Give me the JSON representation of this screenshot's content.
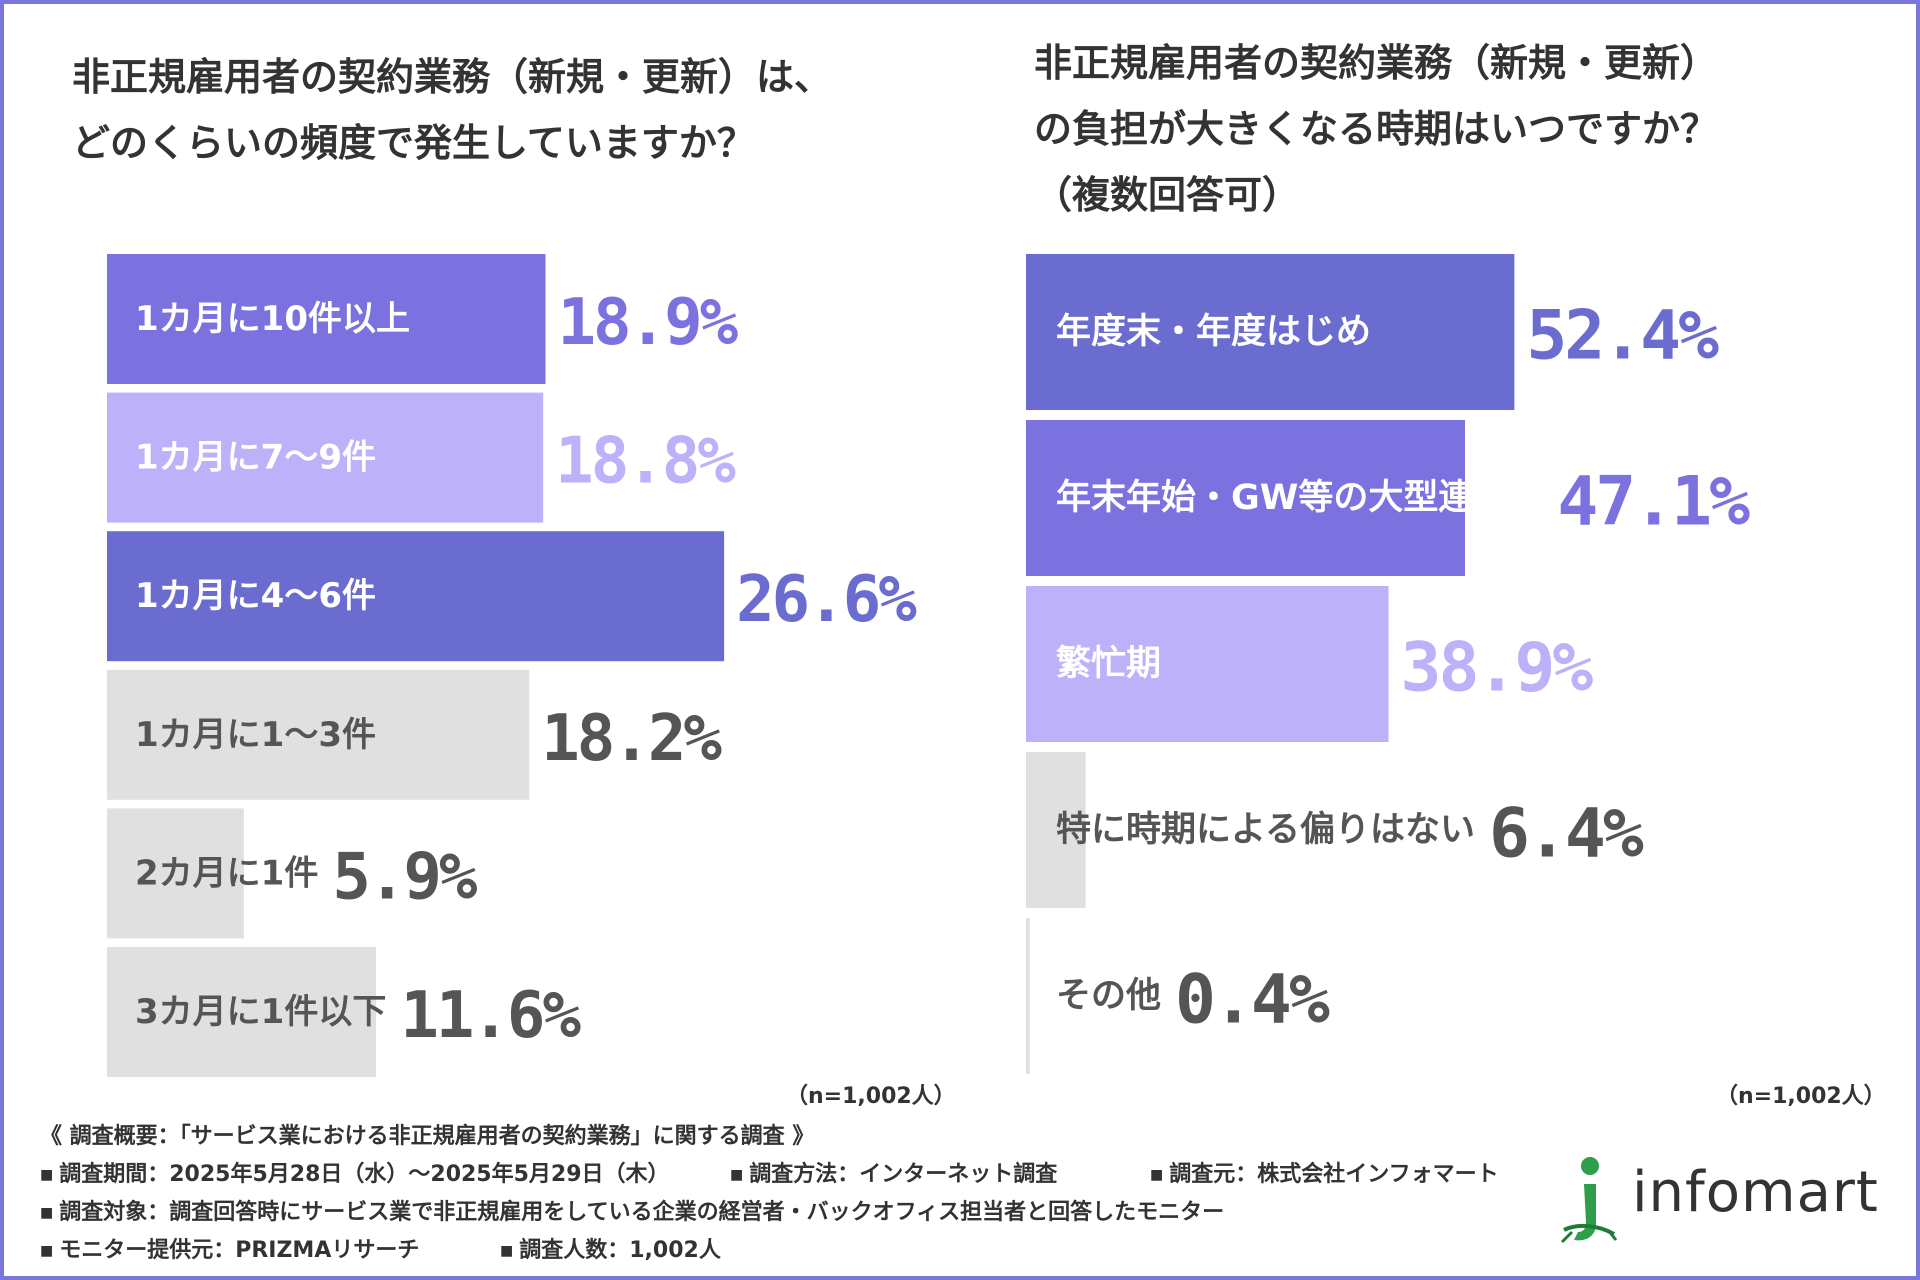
{
  "colors": {
    "frame": "#7b76d9",
    "purple_main": "#7b72df",
    "purple_light": "#bdb1fa",
    "indigo": "#6a6cd0",
    "gray_bar": "#e0e0e0",
    "gray_text": "#555555",
    "logo_green": "#2f9e4a"
  },
  "chart_data": [
    {
      "type": "bar",
      "orientation": "horizontal",
      "title": "非正規雇用者の契約業務（新規・更新）は、どのくらいの頻度で発生していますか？",
      "title_lines": [
        "非正規雇用者の契約業務（新規・更新）は、",
        "どのくらいの頻度で発生していますか？"
      ],
      "categories": [
        "1カ月に10件以上",
        "1カ月に7〜9件",
        "1カ月に4〜6件",
        "1カ月に1〜3件",
        "2カ月に1件",
        "3カ月に1件以下"
      ],
      "values": [
        18.9,
        18.8,
        26.6,
        18.2,
        5.9,
        11.6
      ],
      "labels": [
        "18.9%",
        "18.8%",
        "26.6%",
        "18.2%",
        "5.9%",
        "11.6%"
      ],
      "bar_colors": [
        "#7b72df",
        "#bdb1fa",
        "#6a6cd0",
        "#e0e0e0",
        "#e0e0e0",
        "#e0e0e0"
      ],
      "label_colors": [
        "#ffffff",
        "#ffffff",
        "#ffffff",
        "#555555",
        "#555555",
        "#555555"
      ],
      "value_colors": [
        "#7b72df",
        "#bdb1fa",
        "#6a6cd0",
        "#555555",
        "#555555",
        "#555555"
      ],
      "xlim": [
        0,
        30
      ],
      "note": "（n=1,002人）"
    },
    {
      "type": "bar",
      "orientation": "horizontal",
      "title": "非正規雇用者の契約業務（新規・更新）の負担が大きくなる時期はいつですか？（複数回答可）",
      "title_lines": [
        "非正規雇用者の契約業務（新規・更新）",
        "の負担が大きくなる時期はいつですか？",
        "（複数回答可）"
      ],
      "categories": [
        "年度末・年度はじめ",
        "年末年始・GW等の大型連休前",
        "繁忙期",
        "特に時期による偏りはない",
        "その他"
      ],
      "values": [
        52.4,
        47.1,
        38.9,
        6.4,
        0.4
      ],
      "labels": [
        "52.4%",
        "47.1%",
        "38.9%",
        "6.4%",
        "0.4%"
      ],
      "bar_colors": [
        "#6a6cd0",
        "#7b72df",
        "#bdb1fa",
        "#e0e0e0",
        "#e0e0e0"
      ],
      "label_colors": [
        "#ffffff",
        "#ffffff",
        "#ffffff",
        "#555555",
        "#555555"
      ],
      "value_colors": [
        "#6a6cd0",
        "#7b72df",
        "#bdb1fa",
        "#555555",
        "#555555"
      ],
      "xlim": [
        0,
        60
      ],
      "note": "（n=1,002人）"
    }
  ],
  "survey": {
    "heading": "《 調査概要：「サービス業における非正規雇用者の契約業務」に関する調査 》",
    "period": "調査期間：2025年5月28日（水）〜2025年5月29日（木）",
    "method": "調査方法：インターネット調査",
    "source": "調査元：株式会社インフォマート",
    "target": "調査対象：調査回答時にサービス業で非正規雇用をしている企業の経営者・バックオフィス担当者と回答したモニター",
    "provider": "モニター提供元：PRIZMAリサーチ",
    "count": "調査人数：1,002人",
    "bullet": "■"
  },
  "logo": {
    "text": "infomart"
  }
}
